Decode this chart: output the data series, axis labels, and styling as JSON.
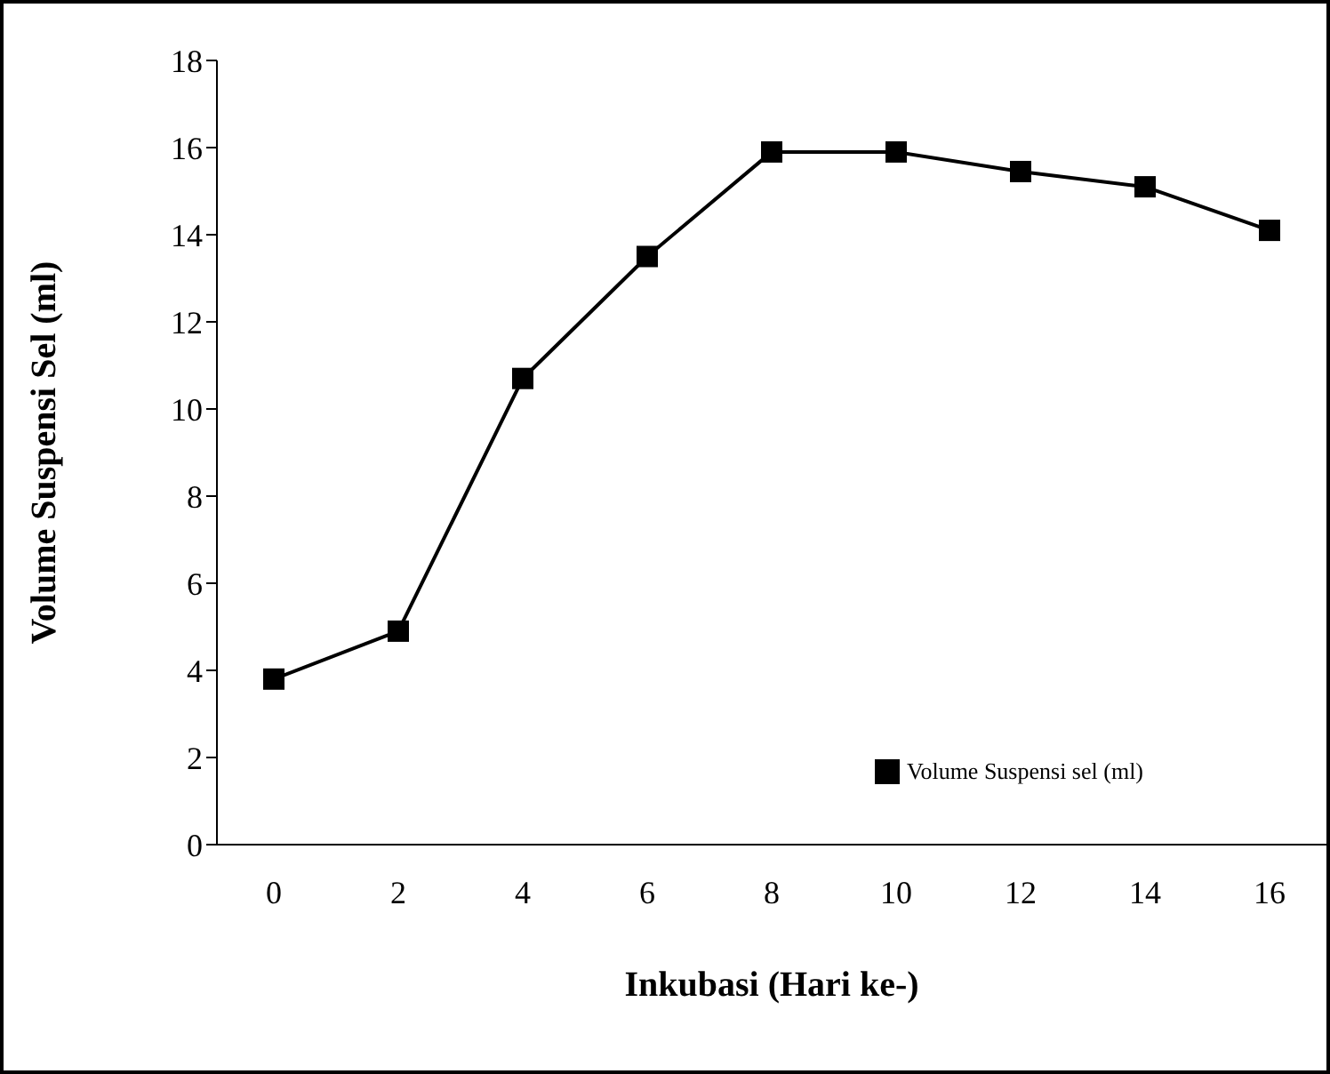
{
  "chart_data": {
    "type": "line",
    "xlabel": "Inkubasi (Hari ke-)",
    "ylabel": "Volume Suspensi Sel (ml)",
    "categories": [
      "0",
      "2",
      "4",
      "6",
      "8",
      "10",
      "12",
      "14",
      "16"
    ],
    "series": [
      {
        "name": "Volume Suspensi sel (ml)",
        "color": "#000000",
        "values": [
          3.8,
          4.9,
          10.7,
          13.5,
          15.9,
          15.9,
          15.45,
          15.1,
          14.1
        ]
      }
    ],
    "ylim": [
      0,
      18
    ],
    "yticks": [
      0,
      2,
      4,
      6,
      8,
      10,
      12,
      14,
      16,
      18
    ],
    "legend": "bottom right",
    "marker": "square",
    "line_style": "solid"
  }
}
